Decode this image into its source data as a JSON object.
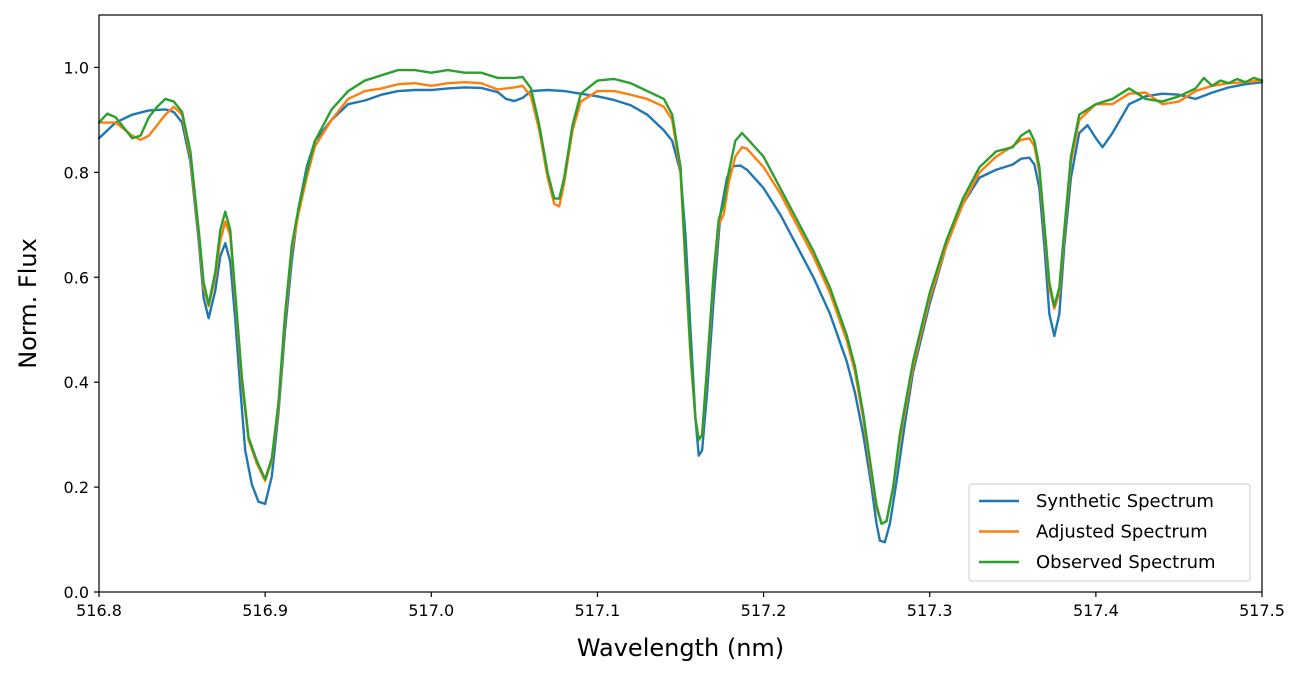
{
  "chart_data": {
    "type": "line",
    "title": "",
    "xlabel": "Wavelength (nm)",
    "ylabel": "Norm. Flux",
    "xlim": [
      516.8,
      517.5
    ],
    "ylim": [
      0.0,
      1.1
    ],
    "xticks": [
      516.8,
      516.9,
      517.0,
      517.1,
      517.2,
      517.3,
      517.4,
      517.5
    ],
    "xtick_labels": [
      "516.8",
      "516.9",
      "517.0",
      "517.1",
      "517.2",
      "517.3",
      "517.4",
      "517.5"
    ],
    "yticks": [
      0.0,
      0.2,
      0.4,
      0.6,
      0.8,
      1.0
    ],
    "ytick_labels": [
      "0.0",
      "0.2",
      "0.4",
      "0.6",
      "0.8",
      "1.0"
    ],
    "grid": false,
    "legend_position": "lower-right",
    "series": [
      {
        "name": "Synthetic Spectrum",
        "color": "#1f77b4",
        "x": [
          516.8,
          516.81,
          516.82,
          516.83,
          516.84,
          516.845,
          516.85,
          516.855,
          516.86,
          516.863,
          516.866,
          516.87,
          516.873,
          516.876,
          516.879,
          516.882,
          516.885,
          516.888,
          516.892,
          516.896,
          516.9,
          516.904,
          516.908,
          516.912,
          516.916,
          516.92,
          516.925,
          516.93,
          516.94,
          516.95,
          516.96,
          516.97,
          516.98,
          516.99,
          517.0,
          517.01,
          517.02,
          517.03,
          517.04,
          517.045,
          517.05,
          517.055,
          517.06,
          517.07,
          517.08,
          517.09,
          517.1,
          517.11,
          517.12,
          517.13,
          517.14,
          517.145,
          517.15,
          517.153,
          517.156,
          517.159,
          517.161,
          517.163,
          517.166,
          517.17,
          517.174,
          517.178,
          517.182,
          517.186,
          517.19,
          517.2,
          517.21,
          517.22,
          517.23,
          517.24,
          517.25,
          517.255,
          517.26,
          517.265,
          517.268,
          517.27,
          517.273,
          517.276,
          517.28,
          517.285,
          517.29,
          517.3,
          517.31,
          517.32,
          517.33,
          517.34,
          517.35,
          517.355,
          517.36,
          517.363,
          517.366,
          517.369,
          517.372,
          517.375,
          517.378,
          517.381,
          517.385,
          517.39,
          517.395,
          517.4,
          517.404,
          517.41,
          517.42,
          517.43,
          517.44,
          517.45,
          517.46,
          517.47,
          517.48,
          517.49,
          517.5
        ],
        "y": [
          0.865,
          0.895,
          0.91,
          0.918,
          0.92,
          0.915,
          0.895,
          0.82,
          0.67,
          0.56,
          0.522,
          0.575,
          0.64,
          0.665,
          0.63,
          0.52,
          0.39,
          0.27,
          0.205,
          0.172,
          0.168,
          0.22,
          0.34,
          0.5,
          0.63,
          0.73,
          0.81,
          0.86,
          0.9,
          0.93,
          0.937,
          0.948,
          0.955,
          0.957,
          0.957,
          0.96,
          0.962,
          0.961,
          0.953,
          0.94,
          0.936,
          0.942,
          0.955,
          0.957,
          0.955,
          0.95,
          0.945,
          0.938,
          0.928,
          0.91,
          0.88,
          0.86,
          0.8,
          0.68,
          0.5,
          0.33,
          0.26,
          0.27,
          0.38,
          0.56,
          0.72,
          0.79,
          0.812,
          0.813,
          0.805,
          0.77,
          0.72,
          0.66,
          0.6,
          0.53,
          0.44,
          0.38,
          0.3,
          0.2,
          0.13,
          0.098,
          0.095,
          0.13,
          0.21,
          0.32,
          0.42,
          0.55,
          0.66,
          0.74,
          0.79,
          0.805,
          0.815,
          0.826,
          0.828,
          0.815,
          0.77,
          0.66,
          0.53,
          0.488,
          0.53,
          0.66,
          0.79,
          0.875,
          0.89,
          0.865,
          0.848,
          0.875,
          0.93,
          0.945,
          0.95,
          0.948,
          0.94,
          0.952,
          0.962,
          0.968,
          0.972
        ]
      },
      {
        "name": "Adjusted Spectrum",
        "color": "#ff7f0e",
        "x": [
          516.8,
          516.81,
          516.82,
          516.825,
          516.83,
          516.84,
          516.845,
          516.85,
          516.855,
          516.86,
          516.863,
          516.866,
          516.87,
          516.873,
          516.876,
          516.879,
          516.882,
          516.886,
          516.89,
          516.895,
          516.9,
          516.904,
          516.908,
          516.912,
          516.916,
          516.92,
          516.925,
          516.93,
          516.94,
          516.95,
          516.96,
          516.97,
          516.98,
          516.99,
          517.0,
          517.01,
          517.02,
          517.03,
          517.04,
          517.05,
          517.055,
          517.06,
          517.065,
          517.07,
          517.074,
          517.077,
          517.08,
          517.085,
          517.09,
          517.1,
          517.11,
          517.12,
          517.13,
          517.14,
          517.145,
          517.15,
          517.153,
          517.156,
          517.159,
          517.161,
          517.163,
          517.166,
          517.17,
          517.173,
          517.176,
          517.179,
          517.183,
          517.187,
          517.19,
          517.2,
          517.21,
          517.22,
          517.23,
          517.24,
          517.25,
          517.255,
          517.26,
          517.265,
          517.268,
          517.271,
          517.274,
          517.278,
          517.282,
          517.29,
          517.3,
          517.31,
          517.32,
          517.33,
          517.34,
          517.35,
          517.355,
          517.36,
          517.363,
          517.366,
          517.369,
          517.372,
          517.375,
          517.378,
          517.381,
          517.385,
          517.39,
          517.4,
          517.41,
          517.42,
          517.43,
          517.44,
          517.45,
          517.46,
          517.47,
          517.48,
          517.49,
          517.5
        ],
        "y": [
          0.895,
          0.895,
          0.87,
          0.862,
          0.87,
          0.91,
          0.925,
          0.91,
          0.83,
          0.68,
          0.58,
          0.545,
          0.6,
          0.67,
          0.706,
          0.68,
          0.56,
          0.4,
          0.29,
          0.245,
          0.212,
          0.25,
          0.35,
          0.52,
          0.65,
          0.72,
          0.79,
          0.85,
          0.9,
          0.94,
          0.955,
          0.96,
          0.968,
          0.97,
          0.965,
          0.97,
          0.972,
          0.97,
          0.958,
          0.962,
          0.965,
          0.945,
          0.88,
          0.79,
          0.74,
          0.735,
          0.78,
          0.88,
          0.935,
          0.955,
          0.955,
          0.948,
          0.94,
          0.925,
          0.9,
          0.8,
          0.62,
          0.45,
          0.33,
          0.29,
          0.3,
          0.42,
          0.6,
          0.7,
          0.72,
          0.78,
          0.83,
          0.848,
          0.845,
          0.81,
          0.76,
          0.7,
          0.64,
          0.57,
          0.48,
          0.42,
          0.33,
          0.22,
          0.16,
          0.13,
          0.135,
          0.2,
          0.29,
          0.43,
          0.56,
          0.66,
          0.74,
          0.8,
          0.83,
          0.85,
          0.862,
          0.865,
          0.85,
          0.8,
          0.69,
          0.58,
          0.54,
          0.57,
          0.68,
          0.82,
          0.9,
          0.93,
          0.93,
          0.95,
          0.952,
          0.93,
          0.935,
          0.955,
          0.965,
          0.97,
          0.972,
          0.975
        ]
      },
      {
        "name": "Observed Spectrum",
        "color": "#2ca02c",
        "x": [
          516.8,
          516.805,
          516.81,
          516.815,
          516.82,
          516.825,
          516.83,
          516.835,
          516.84,
          516.845,
          516.85,
          516.855,
          516.86,
          516.863,
          516.866,
          516.87,
          516.873,
          516.876,
          516.879,
          516.882,
          516.886,
          516.89,
          516.895,
          516.9,
          516.904,
          516.908,
          516.912,
          516.916,
          516.92,
          516.925,
          516.93,
          516.94,
          516.95,
          516.96,
          516.97,
          516.98,
          516.99,
          517.0,
          517.01,
          517.02,
          517.03,
          517.04,
          517.05,
          517.055,
          517.06,
          517.065,
          517.07,
          517.074,
          517.077,
          517.08,
          517.085,
          517.09,
          517.1,
          517.11,
          517.12,
          517.13,
          517.14,
          517.145,
          517.15,
          517.153,
          517.156,
          517.159,
          517.161,
          517.163,
          517.166,
          517.17,
          517.173,
          517.176,
          517.179,
          517.183,
          517.187,
          517.19,
          517.2,
          517.21,
          517.22,
          517.23,
          517.24,
          517.25,
          517.255,
          517.26,
          517.265,
          517.268,
          517.271,
          517.274,
          517.278,
          517.282,
          517.29,
          517.3,
          517.31,
          517.32,
          517.33,
          517.34,
          517.35,
          517.355,
          517.36,
          517.363,
          517.366,
          517.369,
          517.372,
          517.375,
          517.378,
          517.381,
          517.385,
          517.39,
          517.4,
          517.41,
          517.42,
          517.43,
          517.44,
          517.45,
          517.46,
          517.465,
          517.47,
          517.475,
          517.48,
          517.485,
          517.49,
          517.495,
          517.5
        ],
        "y": [
          0.895,
          0.912,
          0.905,
          0.885,
          0.865,
          0.87,
          0.905,
          0.925,
          0.94,
          0.935,
          0.915,
          0.84,
          0.69,
          0.59,
          0.548,
          0.61,
          0.69,
          0.725,
          0.69,
          0.57,
          0.41,
          0.295,
          0.25,
          0.215,
          0.255,
          0.36,
          0.53,
          0.66,
          0.73,
          0.8,
          0.86,
          0.92,
          0.955,
          0.975,
          0.985,
          0.995,
          0.995,
          0.99,
          0.995,
          0.99,
          0.99,
          0.98,
          0.98,
          0.982,
          0.96,
          0.89,
          0.8,
          0.75,
          0.75,
          0.79,
          0.89,
          0.95,
          0.975,
          0.978,
          0.97,
          0.955,
          0.94,
          0.91,
          0.81,
          0.63,
          0.46,
          0.33,
          0.29,
          0.3,
          0.43,
          0.61,
          0.71,
          0.74,
          0.8,
          0.86,
          0.875,
          0.865,
          0.83,
          0.77,
          0.71,
          0.65,
          0.58,
          0.49,
          0.43,
          0.34,
          0.23,
          0.165,
          0.13,
          0.135,
          0.2,
          0.3,
          0.44,
          0.57,
          0.67,
          0.75,
          0.81,
          0.84,
          0.848,
          0.87,
          0.88,
          0.86,
          0.81,
          0.7,
          0.59,
          0.545,
          0.58,
          0.69,
          0.83,
          0.91,
          0.93,
          0.94,
          0.96,
          0.94,
          0.935,
          0.945,
          0.96,
          0.98,
          0.965,
          0.975,
          0.97,
          0.978,
          0.972,
          0.98,
          0.975
        ]
      }
    ]
  }
}
